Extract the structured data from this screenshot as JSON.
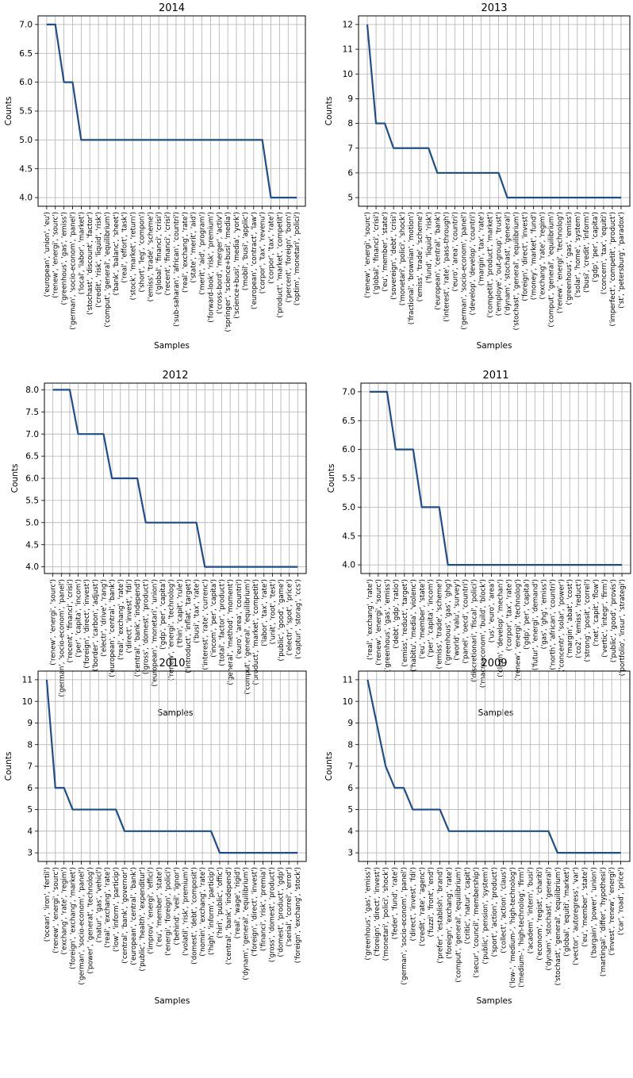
{
  "chart_data": [
    {
      "type": "line",
      "title": "2014",
      "xlabel": "Samples",
      "ylabel": "Counts",
      "ylim": [
        3.85,
        7.15
      ],
      "yticks": [
        "4.0",
        "4.5",
        "5.0",
        "5.5",
        "6.0",
        "6.5",
        "7.0"
      ],
      "grid": true,
      "categories": [
        "('european', 'union', 'eu')",
        "('renew', 'energi', 'sourc')",
        "('greenhous', 'gas', 'emiss')",
        "('german', 'socio-econom', 'panel')",
        "('local', 'labor', 'market')",
        "('stochast', 'discount', 'factor')",
        "('credit', 'risk', 'liquid', 'risk')",
        "('comput', 'general', 'equilibrium')",
        "('bank', 'balanc', 'sheet')",
        "('real', 'effort', 'task')",
        "('stock', 'market', 'return')",
        "('short', 'leg', 'compon')",
        "('emiss', 'trade', 'scheme')",
        "('global', 'financi', 'crisi')",
        "('recent', 'financi', 'crisi')",
        "('sub-saharan', 'african', 'countri')",
        "('real', 'exchang', 'rate')",
        "('state', 'merit', 'aid')",
        "('merit', 'aid', 'program')",
        "('forward-look', 'risk', 'premium')",
        "('cross-bord', 'merger', 'activ')",
        "('springer', 'science+busi', 'media')",
        "('science+busi', 'media', 'york')",
        "('mobil', 'busi', 'applic')",
        "('european', 'contract', 'law')",
        "('corpor', 'tax', 'revenu')",
        "('corpor', 'tax', 'rate')",
        "('product', 'market', 'competit')",
        "('percent', 'foreign', 'born')",
        "('optim', 'monetari', 'polici')"
      ],
      "values": [
        7,
        7,
        6,
        6,
        5,
        5,
        5,
        5,
        5,
        5,
        5,
        5,
        5,
        5,
        5,
        5,
        5,
        5,
        5,
        5,
        5,
        5,
        5,
        5,
        5,
        5,
        4,
        4,
        4,
        4
      ]
    },
    {
      "type": "line",
      "title": "2013",
      "xlabel": "Samples",
      "ylabel": "Counts",
      "ylim": [
        4.65,
        12.35
      ],
      "yticks": [
        "5",
        "6",
        "7",
        "8",
        "9",
        "10",
        "11",
        "12"
      ],
      "grid": true,
      "categories": [
        "('renew', 'energi', 'sourc')",
        "('global', 'financi', 'crisi')",
        "('eu', 'member', 'state')",
        "('sovereign', 'debt', 'crisi')",
        "('monetari', 'polici', 'shock')",
        "('fractional', 'brownian', 'motion')",
        "('emiss', 'trade', 'scheme')",
        "('fund', 'liquid', 'risk')",
        "('european', 'central', 'bank')",
        "('interest', 'rate', 'pass-through')",
        "('euro', 'area', 'countri')",
        "('german', 'socio-econom', 'panel')",
        "('develop', 'develop', 'countri')",
        "('margin', 'tax', 'rate')",
        "('competit', 'product', 'market')",
        "('employe', 'out-group', 'trust')",
        "('dynam', 'stochast', 'general')",
        "('stochast', 'general', 'equilibrium')",
        "('foreign', 'direct', 'invest')",
        "('money', 'market', 'fund')",
        "('exchang', 'rate', 'regim')",
        "('comput', 'general', 'equilibrium')",
        "('renew', 'energi', 'technolog')",
        "('greenhous', 'gas', 'emiss')",
        "('solar', 'home', 'system')",
        "('busi', 'credit', 'inform')",
        "('gdp', 'per', 'capita')",
        "('concern', 'tax', 'equiti')",
        "('imperfect', 'competit', 'product')",
        "('st', 'petersburg', 'paradox')"
      ],
      "values": [
        12,
        8,
        8,
        7,
        7,
        7,
        7,
        7,
        6,
        6,
        6,
        6,
        6,
        6,
        6,
        6,
        5,
        5,
        5,
        5,
        5,
        5,
        5,
        5,
        5,
        5,
        5,
        5,
        5,
        5
      ]
    },
    {
      "type": "line",
      "title": "2012",
      "xlabel": "Samples",
      "ylabel": "Counts",
      "ylim": [
        3.85,
        8.15
      ],
      "yticks": [
        "4.0",
        "4.5",
        "5.0",
        "5.5",
        "6.0",
        "6.5",
        "7.0",
        "7.5",
        "8.0"
      ],
      "grid": true,
      "categories": [
        "('renew', 'energi', 'sourc')",
        "('german', 'socio-econom', 'panel')",
        "('recent', 'financi', 'crisi')",
        "('per', 'capita', 'incom')",
        "('foreign', 'direct', 'invest')",
        "('border', 'carbon', 'adjust')",
        "('electr', 'drive', 'rang')",
        "('european', 'central', 'bank')",
        "('real', 'exchang', 'rate')",
        "('direct', 'invest', 'fdi')",
        "('central', 'bank', 'independ')",
        "('gross', 'domest', 'product')",
        "('european', 'monetari', 'union')",
        "('gdp', 'per', 'capita')",
        "('renew', 'energi', 'technolog')",
        "('thin', 'capit', 'rule')",
        "('introduct', 'inflat', 'target')",
        "('busi', 'tax', 'rate')",
        "('interest', 'rate', 'currenc')",
        "('incom', 'per', 'capita')",
        "('total', 'factor', 'product')",
        "('general', 'method', 'moment')",
        "('euro', 'area', 'countri')",
        "('comput', 'general', 'equilibrium')",
        "('product', 'market', 'competit')",
        "('labor', 'tax', 'rate')",
        "('unit', 'root', 'test')",
        "('public', 'good', 'game')",
        "('electr', 'spot', 'price')",
        "('captur', 'storag', 'ccs')"
      ],
      "values": [
        8,
        8,
        8,
        7,
        7,
        7,
        7,
        6,
        6,
        6,
        6,
        5,
        5,
        5,
        5,
        5,
        5,
        5,
        4,
        4,
        4,
        4,
        4,
        4,
        4,
        4,
        4,
        4,
        4,
        4
      ]
    },
    {
      "type": "line",
      "title": "2011",
      "xlabel": "Samples",
      "ylabel": "Counts",
      "ylim": [
        3.85,
        7.15
      ],
      "yticks": [
        "4.0",
        "4.5",
        "5.0",
        "5.5",
        "6.0",
        "6.5",
        "7.0"
      ],
      "grid": true,
      "categories": [
        "('real', 'exchang', 'rate')",
        "('renew', 'energi', 'sourc')",
        "('greenhous', 'gas', 'emiss')",
        "('debt', 'gdp', 'ratio')",
        "('emiss', 'reduct', 'target')",
        "('habitu', 'media', 'violenc')",
        "('eu', 'member', 'state')",
        "('per', 'capita', 'incom')",
        "('emiss', 'trade', 'scheme')",
        "('greenhous', 'gas', 'ghg')",
        "('world', 'valu', 'survey')",
        "('panel', 'oecd', 'countri')",
        "('discretionari', 'fiscal', 'polici')",
        "('macroeconom', 'build', 'block')",
        "('us', 'euro', 'area')",
        "('clean', 'develop', 'mechan')",
        "('corpor', 'tax', 'rate')",
        "('renew', 'energi', 'technolog')",
        "('gdp', 'per', 'capita')",
        "('futur', 'energi', 'demand')",
        "('gas', 'ghg', 'emiss')",
        "('north', 'african', 'countri')",
        "('concentr', 'solar', 'power')",
        "('margin', 'abat', 'cost')",
        "('co2', 'emiss', 'reduct')",
        "('strong', 'posit', 'correl')",
        "('net', 'capit', 'flow')",
        "('vertic', 'integr', 'firm')",
        "('public', 'good', 'provis')",
        "('portfolio', 'insur', 'strategi')"
      ],
      "values": [
        7,
        7,
        7,
        6,
        6,
        6,
        5,
        5,
        5,
        4,
        4,
        4,
        4,
        4,
        4,
        4,
        4,
        4,
        4,
        4,
        4,
        4,
        4,
        4,
        4,
        4,
        4,
        4,
        4,
        4
      ]
    },
    {
      "type": "line",
      "title": "2010",
      "xlabel": "Samples",
      "ylabel": "Counts",
      "ylim": [
        2.6,
        11.4
      ],
      "yticks": [
        "3",
        "4",
        "5",
        "6",
        "7",
        "8",
        "9",
        "10",
        "11"
      ],
      "grid": true,
      "categories": [
        "('ocean', 'iron', 'fertil')",
        "('renew', 'energi', 'sourc')",
        "('exchang', 'rate', 'regim')",
        "('foreign', 'exchang', 'market')",
        "('german', 'socio-econom', 'panel')",
        "('power', 'generat', 'technolog')",
        "('natur', 'gas', 'vehicl')",
        "('real', 'exchang', 'rate')",
        "('low', 'inform', 'particip')",
        "('central', 'bank', 'governor')",
        "('european', 'central', 'bank')",
        "('public', 'health', 'expenditur')",
        "('improv', 'energi', 'effici')",
        "('eu', 'member', 'state')",
        "('energi', 'foreign', 'polici')",
        "('behind', 'veil', 'ignor')",
        "('volatil', 'risk', 'premium')",
        "('domest', 'debt', 'composit')",
        "('nomin', 'exchang', 'rate')",
        "('high', 'inform', 'particip')",
        "('hiri', 'public', 'offic')",
        "('central', 'bank', 'independ')",
        "('real', 'wage', 'rigid')",
        "('dynam', 'general', 'equilibrium')",
        "('foreign', 'direct', 'invest')",
        "('financi', 'risk', 'premia')",
        "('gross', 'domest', 'product')",
        "('domest', 'product', 'gdp')",
        "('serial', 'correl', 'error')",
        "('foreign', 'exchang', 'stock')"
      ],
      "values": [
        11,
        6,
        6,
        5,
        5,
        5,
        5,
        5,
        5,
        4,
        4,
        4,
        4,
        4,
        4,
        4,
        4,
        4,
        4,
        4,
        3,
        3,
        3,
        3,
        3,
        3,
        3,
        3,
        3,
        3
      ]
    },
    {
      "type": "line",
      "title": "2009",
      "xlabel": "Samples",
      "ylabel": "Counts",
      "ylim": [
        2.6,
        11.4
      ],
      "yticks": [
        "3",
        "4",
        "5",
        "6",
        "7",
        "8",
        "9",
        "10",
        "11"
      ],
      "grid": true,
      "categories": [
        "('greenhous', 'gas', 'emiss')",
        "('foreign', 'direct', 'invest')",
        "('monetari', 'polici', 'shock')",
        "('feder', 'fund', 'rate')",
        "('german', 'socio-econom', 'panel')",
        "('direct', 'invest', 'fdi')",
        "('credit', 'rate', 'agenc')",
        "('fuzzi', 'front', 'end')",
        "('prefer', 'establish', 'brand')",
        "('foreign', 'exchang', 'rate')",
        "('comput', 'general', 'equilibrium')",
        "('critic', 'natur', 'capit')",
        "('secur', 'council', 'membership')",
        "('public', 'pension', 'system')",
        "('sport', 'action', 'product')",
        "('collect', 'action', 'claus')",
        "('low-', 'medium-', 'high-technolog')",
        "('medium-', 'high-technolog', 'firm')",
        "('academ', 'intern', 'busi')",
        "('econom', 'regist', 'chariti')",
        "('dynam', 'stochast', 'general')",
        "('stochast', 'general', 'equilibrium')",
        "('global', 'equiti', 'market')",
        "('vector', 'autoregress', 'var')",
        "('eu', 'member', 'state')",
        "('bargain', 'power', 'union')",
        "('martingal', 'differ', 'hypothesi')",
        "('invest', 'renew', 'energi')",
        "('car', 'road', 'price')"
      ],
      "values": [
        11,
        9,
        7,
        6,
        6,
        5,
        5,
        5,
        5,
        4,
        4,
        4,
        4,
        4,
        4,
        4,
        4,
        4,
        4,
        4,
        4,
        3,
        3,
        3,
        3,
        3,
        3,
        3,
        3
      ]
    }
  ]
}
